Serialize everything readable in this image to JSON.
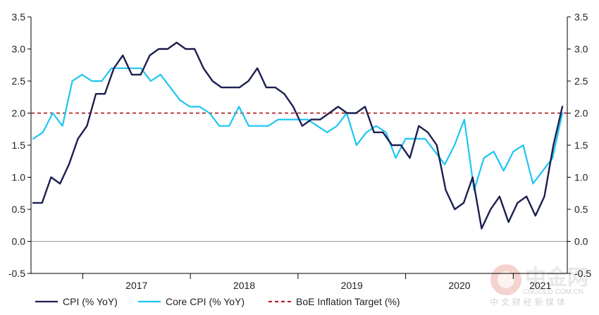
{
  "chart_data": {
    "type": "line",
    "title": "",
    "xlabel": "",
    "ylabel": "",
    "ylim": [
      -0.5,
      3.5
    ],
    "yticks": [
      -0.5,
      0.0,
      0.5,
      1.0,
      1.5,
      2.0,
      2.5,
      3.0,
      3.5
    ],
    "ytick_labels": [
      "-0.5",
      "0.0",
      "0.5",
      "1.0",
      "1.5",
      "2.0",
      "2.5",
      "3.0",
      "3.5"
    ],
    "year_labels": [
      "2017",
      "2018",
      "2019",
      "2020",
      "2021"
    ],
    "period": "monthly, Jul 2016 - May 2021",
    "series": [
      {
        "name": "CPI (% YoY)",
        "color": "#1b1f4f",
        "values": [
          0.6,
          0.6,
          1.0,
          0.9,
          1.2,
          1.6,
          1.8,
          2.3,
          2.3,
          2.7,
          2.9,
          2.6,
          2.6,
          2.9,
          3.0,
          3.0,
          3.1,
          3.0,
          3.0,
          2.7,
          2.5,
          2.4,
          2.4,
          2.4,
          2.5,
          2.7,
          2.4,
          2.4,
          2.3,
          2.1,
          1.8,
          1.9,
          1.9,
          2.0,
          2.1,
          2.0,
          2.0,
          2.1,
          1.7,
          1.7,
          1.5,
          1.5,
          1.3,
          1.8,
          1.7,
          1.5,
          0.8,
          0.5,
          0.6,
          1.0,
          0.2,
          0.5,
          0.7,
          0.3,
          0.6,
          0.7,
          0.4,
          0.7,
          1.5,
          2.1
        ],
        "start_index": 11
      },
      {
        "name": "Core CPI (% YoY)",
        "color": "#1cc5f2",
        "values": [
          1.6,
          1.7,
          2.0,
          1.8,
          2.5,
          2.6,
          2.5,
          2.5,
          2.7,
          2.7,
          2.7,
          2.7,
          2.5,
          2.6,
          2.4,
          2.2,
          2.1,
          2.1,
          2.0,
          1.8,
          1.8,
          2.1,
          1.8,
          1.8,
          1.8,
          1.9,
          1.9,
          1.9,
          1.9,
          1.8,
          1.7,
          1.8,
          2.0,
          1.5,
          1.7,
          1.8,
          1.7,
          1.3,
          1.6,
          1.6,
          1.6,
          1.4,
          1.2,
          1.5,
          1.9,
          0.8,
          1.3,
          1.4,
          1.1,
          1.4,
          1.5,
          0.9,
          1.1,
          1.3,
          2.0
        ],
        "start_index": 0
      },
      {
        "name": "BoE Inflation Target (%)",
        "color": "#b2242a",
        "style": "dashed",
        "values": [
          2.0,
          2.0
        ]
      }
    ]
  },
  "legend": {
    "items": [
      {
        "label": "CPI (% YoY)",
        "color": "#1b1f4f",
        "style": "solid"
      },
      {
        "label": "Core CPI (% YoY)",
        "color": "#1cc5f2",
        "style": "solid"
      },
      {
        "label": "BoE Inflation Target (%)",
        "color": "#b2242a",
        "style": "dashed"
      }
    ]
  },
  "watermark": {
    "main": "中金网",
    "domain": "CNGOLD.COM.CN",
    "sub": "中 文 财 经 新 媒 体",
    "logo_color": "#e8a8a0"
  }
}
